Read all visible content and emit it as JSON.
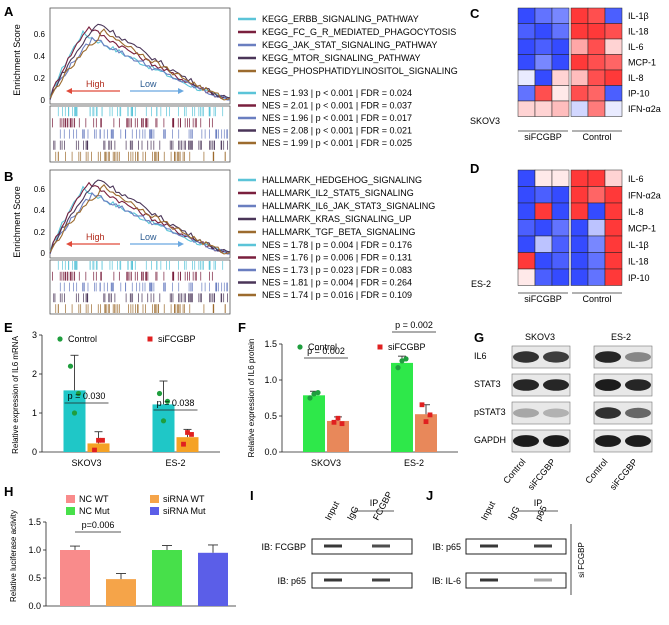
{
  "panels": {
    "A": "A",
    "B": "B",
    "C": "C",
    "D": "D",
    "E": "E",
    "F": "F",
    "G": "G",
    "H": "H",
    "I": "I",
    "J": "J"
  },
  "panelA": {
    "ylabel": "Enrichment Score",
    "yticks": [
      "0.6",
      "0.4",
      "0.2",
      "0"
    ],
    "high": "High",
    "low": "Low",
    "pathways": [
      {
        "name": "KEGG_ERBB_SIGNALING_PATHWAY",
        "color": "#5bc4d8",
        "nes": "NES = 1.93 | p < 0.001 | FDR = 0.024"
      },
      {
        "name": "KEGG_FC_G_R_MEDIATED_PHAGOCYTOSIS",
        "color": "#7a1f3d",
        "nes": "NES = 2.01 | p < 0.001 | FDR = 0.037"
      },
      {
        "name": "KEGG_JAK_STAT_SIGNALING_PATHWAY",
        "color": "#6a7ec0",
        "nes": "NES = 1.96 | p < 0.001 | FDR = 0.017"
      },
      {
        "name": "KEGG_MTOR_SIGNALING_PATHWAY",
        "color": "#4a3558",
        "nes": "NES = 2.08 | p < 0.001 | FDR = 0.021"
      },
      {
        "name": "KEGG_PHOSPHATIDYLINOSITOL_SIGNALING",
        "color": "#9c6b2e",
        "nes": "NES = 1.99 | p < 0.001 | FDR = 0.025"
      }
    ]
  },
  "panelB": {
    "ylabel": "Enrichment Score",
    "yticks": [
      "0.6",
      "0.4",
      "0.2",
      "0"
    ],
    "high": "High",
    "low": "Low",
    "pathways": [
      {
        "name": "HALLMARK_HEDGEHOG_SIGNALING",
        "color": "#5bc4d8",
        "nes": "NES = 1.78 | p = 0.004 | FDR = 0.176"
      },
      {
        "name": "HALLMARK_IL2_STAT5_SIGNALING",
        "color": "#7a1f3d",
        "nes": "NES = 1.76 | p = 0.006 | FDR = 0.131"
      },
      {
        "name": "HALLMARK_IL6_JAK_STAT3_SIGNALING",
        "color": "#6a7ec0",
        "nes": "NES = 1.73 | p = 0.023 | FDR = 0.083"
      },
      {
        "name": "HALLMARK_KRAS_SIGNALING_UP",
        "color": "#4a3558",
        "nes": "NES = 1.81 | p = 0.004 | FDR = 0.264"
      },
      {
        "name": "HALLMARK_TGF_BETA_SIGNALING",
        "color": "#9c6b2e",
        "nes": "NES = 1.74 | p = 0.016 | FDR = 0.109"
      }
    ]
  },
  "panelC": {
    "cell_line": "SKOV3",
    "group_left": "siFCGBP",
    "group_right": "Control",
    "rows": [
      "IL-1β",
      "IL-18",
      "IL-6",
      "MCP-1",
      "IL-8",
      "IP-10",
      "IFN-α2a"
    ],
    "values": [
      [
        -0.9,
        -0.7,
        -0.6,
        0.9,
        0.8,
        -0.8
      ],
      [
        -0.8,
        -0.9,
        -0.7,
        0.9,
        0.9,
        0.8
      ],
      [
        -0.9,
        -0.8,
        -0.9,
        0.4,
        0.8,
        0.2
      ],
      [
        -0.9,
        -0.6,
        -0.9,
        0.9,
        0.8,
        0.7
      ],
      [
        -0.1,
        -0.9,
        0.2,
        0.3,
        0.8,
        0.9
      ],
      [
        -0.7,
        0.8,
        0.1,
        0.8,
        0.7,
        -0.8
      ],
      [
        0.2,
        0.2,
        0.3,
        -0.2,
        0.6,
        -0.1
      ]
    ]
  },
  "panelD": {
    "cell_line": "ES-2",
    "group_left": "siFCGBP",
    "group_right": "Control",
    "rows": [
      "IL-6",
      "IFN-α2a",
      "IL-8",
      "MCP-1",
      "IL-1β",
      "IL-18",
      "IP-10"
    ],
    "values": [
      [
        -0.9,
        0.1,
        0.1,
        0.9,
        0.9,
        0.2
      ],
      [
        -0.9,
        -0.8,
        -0.9,
        0.9,
        0.7,
        0.9
      ],
      [
        -0.9,
        0.9,
        -0.9,
        0.9,
        -0.9,
        0.9
      ],
      [
        -0.8,
        -0.9,
        -0.7,
        -0.9,
        -0.3,
        0.9
      ],
      [
        -0.9,
        -0.3,
        -0.8,
        -0.9,
        -0.6,
        0.9
      ],
      [
        0.9,
        -0.9,
        -0.8,
        -0.9,
        -0.7,
        0.9
      ],
      [
        0.1,
        -0.8,
        -0.9,
        -0.9,
        -0.7,
        0.9
      ]
    ]
  },
  "chart_data": [
    {
      "panel": "E",
      "type": "bar",
      "ylabel": "Relative expression of IL6 mRNA",
      "categories": [
        "SKOV3",
        "ES-2"
      ],
      "ylim": [
        0,
        3
      ],
      "yticks": [
        "0",
        "1",
        "2",
        "3"
      ],
      "series": [
        {
          "name": "Control",
          "color": "#1fc7c7",
          "values": [
            1.58,
            1.22
          ],
          "errors": [
            0.9,
            0.6
          ],
          "points": [
            [
              2.2,
              1.0,
              1.5
            ],
            [
              1.5,
              0.8,
              1.3
            ]
          ]
        },
        {
          "name": "siFCGBP",
          "color": "#f5a225",
          "values": [
            0.22,
            0.38
          ],
          "errors": [
            0.3,
            0.2
          ],
          "points": [
            [
              0.05,
              0.3,
              0.3
            ],
            [
              0.2,
              0.5,
              0.45
            ]
          ]
        }
      ],
      "annotations": [
        "p = 0.030",
        "p = 0.038"
      ],
      "legend": [
        {
          "label": "Control",
          "color": "#1f9e3e"
        },
        {
          "label": "siFCGBP",
          "color": "#e02020"
        }
      ]
    },
    {
      "panel": "F",
      "type": "bar",
      "ylabel": "Relative expression of IL6 protein",
      "categories": [
        "SKOV3",
        "ES-2"
      ],
      "ylim": [
        0,
        1.6
      ],
      "yticks": [
        "0.0",
        "0.5",
        "1.0",
        "1.5"
      ],
      "series": [
        {
          "name": "Control",
          "color": "#2ee84a",
          "values": [
            0.84,
            1.32
          ],
          "errors": [
            0.06,
            0.1
          ],
          "points": [
            [
              0.8,
              0.86,
              0.88
            ],
            [
              1.25,
              1.35,
              1.38
            ]
          ]
        },
        {
          "name": "siFCGBP",
          "color": "#e8885a",
          "values": [
            0.46,
            0.56
          ],
          "errors": [
            0.06,
            0.14
          ],
          "points": [
            [
              0.44,
              0.5,
              0.42
            ],
            [
              0.7,
              0.45,
              0.55
            ]
          ]
        }
      ],
      "annotations": [
        "p = 0.002",
        "p = 0.002"
      ],
      "legend": [
        {
          "label": "Control",
          "color": "#1f9e3e"
        },
        {
          "label": "siFCGBP",
          "color": "#e02020"
        }
      ]
    },
    {
      "panel": "H",
      "type": "bar",
      "ylabel": "Relative luciferase activity",
      "categories": [
        "NC WT",
        "siRNA WT",
        "NC Mut",
        "siRNA Mut"
      ],
      "ylim": [
        0,
        1.5
      ],
      "yticks": [
        "0.0",
        "0.5",
        "1.0",
        "1.5"
      ],
      "series": [
        {
          "name": "Relative luciferase activity",
          "colors": [
            "#f98b8b",
            "#f5a449",
            "#47e04a",
            "#5b5ee8"
          ],
          "values": [
            1.0,
            0.48,
            1.0,
            0.95
          ],
          "errors": [
            0.07,
            0.1,
            0.08,
            0.14
          ]
        }
      ],
      "annotations": [
        "p=0.006"
      ]
    }
  ],
  "panelG": {
    "headers": [
      "SKOV3",
      "ES-2"
    ],
    "rows": [
      "IL6",
      "STAT3",
      "pSTAT3",
      "GAPDH"
    ],
    "lanes": [
      "Control",
      "siFCGBP",
      "Control",
      "siFCGBP"
    ]
  },
  "panelI": {
    "ip": "IP",
    "lanes": [
      "Input",
      "IgG",
      "FCGBP"
    ],
    "blots": [
      "IB: FCGBP",
      "IB: p65"
    ]
  },
  "panelJ": {
    "ip": "IP",
    "lanes": [
      "Input",
      "IgG",
      "p65"
    ],
    "blots": [
      "IB: p65",
      "IB: IL-6"
    ],
    "side": "si FCGBP"
  }
}
